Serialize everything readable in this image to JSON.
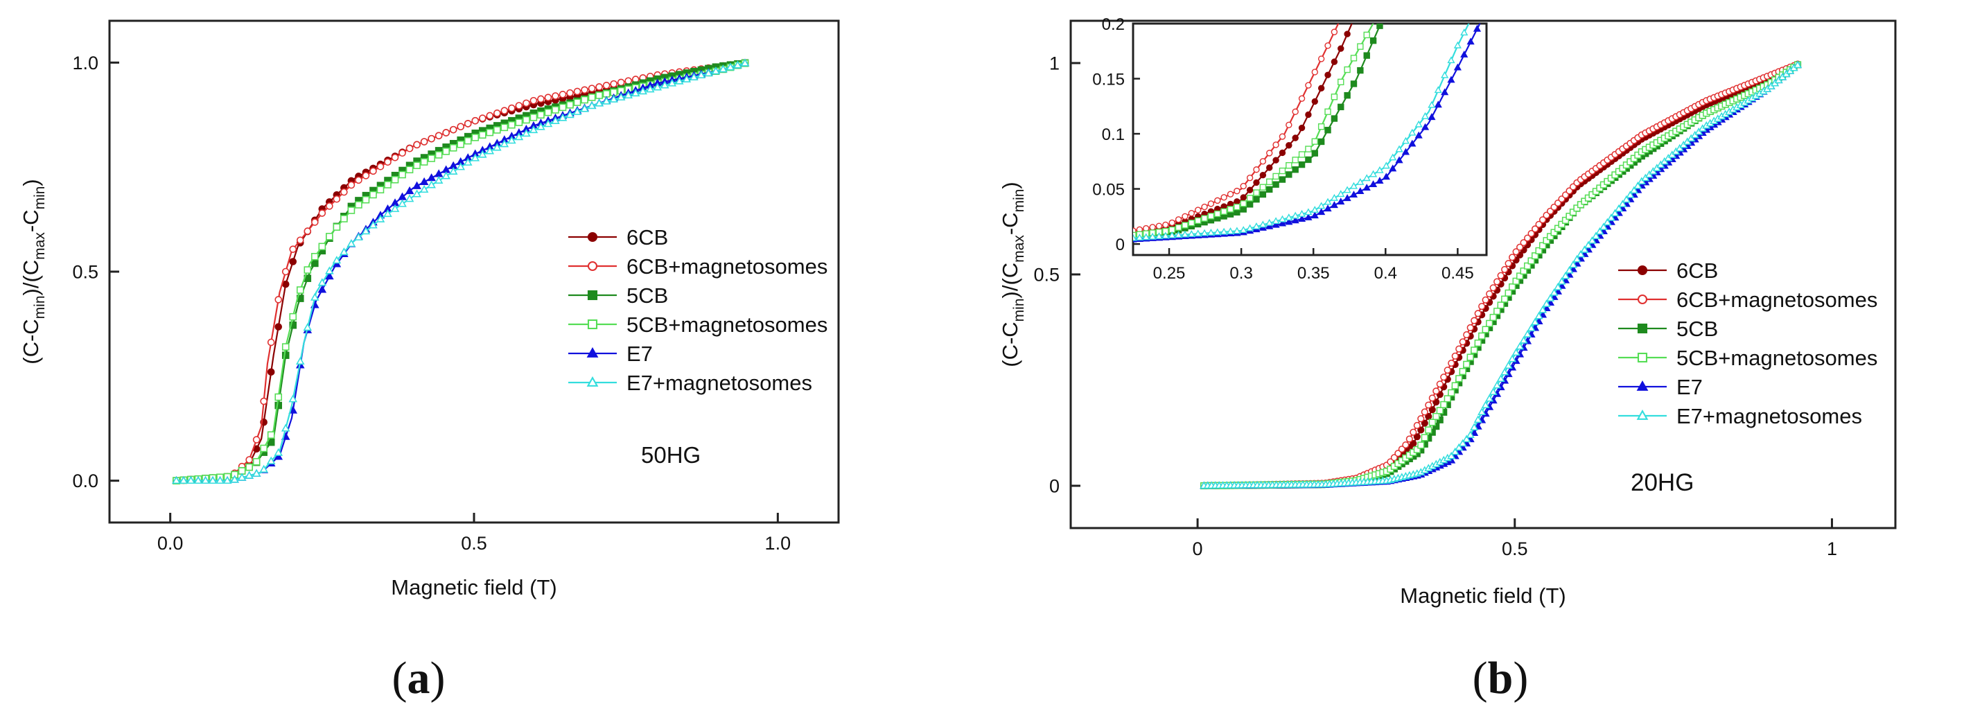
{
  "chart_data": [
    {
      "id": "a",
      "type": "line",
      "panel_label_prefix": "(",
      "panel_label_letter": "a",
      "panel_label_suffix": ")",
      "xlabel": "Magnetic field (T)",
      "ylabel_parts": [
        "(C-C",
        "min",
        ")/(C",
        "max",
        "-C",
        "min",
        ")"
      ],
      "xlim": [
        -0.1,
        1.1
      ],
      "ylim": [
        -0.1,
        1.1
      ],
      "xticks": [
        0.0,
        0.5,
        1.0
      ],
      "xtick_labels": [
        "0.0",
        "0.5",
        "1.0"
      ],
      "yticks": [
        0.0,
        0.5,
        1.0
      ],
      "ytick_labels": [
        "0.0",
        "0.5",
        "1.0"
      ],
      "legend_position": "center-right",
      "annotation": "50HG",
      "series": [
        {
          "name": "6CB",
          "color": "#8b0000",
          "marker": "circle",
          "filled": true,
          "x": [
            0.01,
            0.1,
            0.13,
            0.15,
            0.17,
            0.19,
            0.21,
            0.25,
            0.3,
            0.4,
            0.5,
            0.6,
            0.7,
            0.8,
            0.9,
            0.95
          ],
          "y": [
            0.0,
            0.01,
            0.04,
            0.1,
            0.3,
            0.47,
            0.56,
            0.65,
            0.72,
            0.8,
            0.86,
            0.9,
            0.93,
            0.96,
            0.99,
            1.0
          ]
        },
        {
          "name": "6CB+magnetosomes",
          "color": "#e03030",
          "marker": "circle",
          "filled": false,
          "x": [
            0.01,
            0.1,
            0.13,
            0.15,
            0.16,
            0.18,
            0.2,
            0.25,
            0.3,
            0.4,
            0.5,
            0.6,
            0.7,
            0.8,
            0.9,
            0.95
          ],
          "y": [
            0.0,
            0.01,
            0.05,
            0.13,
            0.28,
            0.45,
            0.55,
            0.64,
            0.71,
            0.8,
            0.86,
            0.91,
            0.94,
            0.97,
            0.99,
            1.0
          ]
        },
        {
          "name": "5CB",
          "color": "#1e8a1e",
          "marker": "square",
          "filled": true,
          "x": [
            0.01,
            0.1,
            0.14,
            0.17,
            0.19,
            0.21,
            0.23,
            0.27,
            0.3,
            0.4,
            0.5,
            0.6,
            0.7,
            0.8,
            0.9,
            0.95
          ],
          "y": [
            0.0,
            0.01,
            0.04,
            0.1,
            0.3,
            0.42,
            0.5,
            0.6,
            0.66,
            0.76,
            0.83,
            0.88,
            0.92,
            0.96,
            0.99,
            1.0
          ]
        },
        {
          "name": "5CB+magnetosomes",
          "color": "#55dd55",
          "marker": "square",
          "filled": false,
          "x": [
            0.01,
            0.1,
            0.14,
            0.17,
            0.19,
            0.21,
            0.23,
            0.27,
            0.3,
            0.4,
            0.5,
            0.6,
            0.7,
            0.8,
            0.9,
            0.95
          ],
          "y": [
            0.0,
            0.01,
            0.04,
            0.12,
            0.32,
            0.44,
            0.52,
            0.6,
            0.65,
            0.75,
            0.82,
            0.87,
            0.92,
            0.95,
            0.98,
            1.0
          ]
        },
        {
          "name": "E7",
          "color": "#1010dd",
          "marker": "triangle",
          "filled": true,
          "x": [
            0.01,
            0.1,
            0.15,
            0.18,
            0.2,
            0.22,
            0.24,
            0.27,
            0.3,
            0.35,
            0.4,
            0.5,
            0.6,
            0.7,
            0.8,
            0.9,
            0.95
          ],
          "y": [
            0.0,
            0.0,
            0.02,
            0.06,
            0.15,
            0.33,
            0.43,
            0.51,
            0.57,
            0.64,
            0.7,
            0.78,
            0.85,
            0.9,
            0.95,
            0.98,
            1.0
          ]
        },
        {
          "name": "E7+magnetosomes",
          "color": "#33dddd",
          "marker": "triangle",
          "filled": false,
          "x": [
            0.01,
            0.1,
            0.15,
            0.18,
            0.2,
            0.22,
            0.24,
            0.27,
            0.3,
            0.35,
            0.4,
            0.5,
            0.6,
            0.7,
            0.8,
            0.9,
            0.95
          ],
          "y": [
            0.0,
            0.0,
            0.02,
            0.07,
            0.18,
            0.33,
            0.45,
            0.52,
            0.57,
            0.63,
            0.68,
            0.77,
            0.84,
            0.9,
            0.94,
            0.98,
            1.0
          ]
        }
      ]
    },
    {
      "id": "b",
      "type": "line",
      "panel_label_prefix": "(",
      "panel_label_letter": "b",
      "panel_label_suffix": ")",
      "xlabel": "Magnetic field (T)",
      "ylabel_parts": [
        "(C-C",
        "min",
        ")/(C",
        "max",
        "-C",
        "min",
        ")"
      ],
      "xlim": [
        -0.2,
        1.1
      ],
      "ylim": [
        -0.1,
        1.1
      ],
      "xticks": [
        0,
        0.5,
        1
      ],
      "xtick_labels": [
        "0",
        "0.5",
        "1"
      ],
      "yticks": [
        0,
        0.5,
        1
      ],
      "ytick_labels": [
        "0",
        "0.5",
        "1"
      ],
      "legend_position": "center-right",
      "annotation": "20HG",
      "series": [
        {
          "name": "6CB",
          "color": "#8b0000",
          "marker": "circle",
          "filled": true,
          "x": [
            0.01,
            0.2,
            0.25,
            0.3,
            0.34,
            0.37,
            0.4,
            0.45,
            0.5,
            0.55,
            0.6,
            0.7,
            0.8,
            0.9,
            0.95
          ],
          "y": [
            0.0,
            0.005,
            0.015,
            0.04,
            0.1,
            0.18,
            0.27,
            0.41,
            0.53,
            0.63,
            0.71,
            0.82,
            0.9,
            0.96,
            1.0
          ]
        },
        {
          "name": "6CB+magnetosomes",
          "color": "#e03030",
          "marker": "circle",
          "filled": false,
          "x": [
            0.01,
            0.2,
            0.25,
            0.3,
            0.33,
            0.36,
            0.4,
            0.45,
            0.5,
            0.55,
            0.6,
            0.7,
            0.8,
            0.9,
            0.95
          ],
          "y": [
            0.0,
            0.006,
            0.018,
            0.05,
            0.1,
            0.18,
            0.29,
            0.43,
            0.55,
            0.64,
            0.72,
            0.83,
            0.91,
            0.97,
            1.0
          ]
        },
        {
          "name": "5CB",
          "color": "#1e8a1e",
          "marker": "square",
          "filled": true,
          "x": [
            0.01,
            0.2,
            0.25,
            0.3,
            0.35,
            0.38,
            0.4,
            0.45,
            0.5,
            0.55,
            0.6,
            0.7,
            0.8,
            0.9,
            0.95
          ],
          "y": [
            0.0,
            0.003,
            0.01,
            0.03,
            0.08,
            0.15,
            0.21,
            0.35,
            0.47,
            0.57,
            0.66,
            0.78,
            0.88,
            0.95,
            1.0
          ]
        },
        {
          "name": "5CB+magnetosomes",
          "color": "#55dd55",
          "marker": "square",
          "filled": false,
          "x": [
            0.01,
            0.2,
            0.25,
            0.3,
            0.35,
            0.37,
            0.4,
            0.45,
            0.5,
            0.55,
            0.6,
            0.7,
            0.8,
            0.9,
            0.95
          ],
          "y": [
            0.0,
            0.004,
            0.012,
            0.035,
            0.09,
            0.15,
            0.22,
            0.36,
            0.48,
            0.58,
            0.66,
            0.79,
            0.88,
            0.95,
            1.0
          ]
        },
        {
          "name": "E7",
          "color": "#1010dd",
          "marker": "triangle",
          "filled": true,
          "x": [
            0.01,
            0.2,
            0.3,
            0.35,
            0.4,
            0.43,
            0.45,
            0.5,
            0.55,
            0.6,
            0.7,
            0.8,
            0.9,
            0.95
          ],
          "y": [
            0.0,
            0.002,
            0.01,
            0.025,
            0.06,
            0.11,
            0.16,
            0.29,
            0.42,
            0.53,
            0.71,
            0.84,
            0.94,
            1.0
          ]
        },
        {
          "name": "E7+magnetosomes",
          "color": "#33dddd",
          "marker": "triangle",
          "filled": false,
          "x": [
            0.01,
            0.2,
            0.3,
            0.35,
            0.4,
            0.43,
            0.45,
            0.5,
            0.55,
            0.6,
            0.7,
            0.8,
            0.9,
            0.95
          ],
          "y": [
            0.0,
            0.003,
            0.012,
            0.03,
            0.07,
            0.12,
            0.18,
            0.31,
            0.43,
            0.54,
            0.72,
            0.85,
            0.94,
            1.0
          ]
        }
      ],
      "inset": {
        "xlim": [
          0.225,
          0.47
        ],
        "ylim": [
          -0.01,
          0.2
        ],
        "xticks": [
          0.25,
          0.3,
          0.35,
          0.4,
          0.45
        ],
        "xtick_labels": [
          "0.25",
          "0.3",
          "0.35",
          "0.4",
          "0.45"
        ],
        "yticks": [
          0,
          0.05,
          0.1,
          0.15,
          0.2
        ],
        "ytick_labels": [
          "0",
          "0.05",
          "0.1",
          "0.15",
          "0.2"
        ]
      }
    }
  ]
}
